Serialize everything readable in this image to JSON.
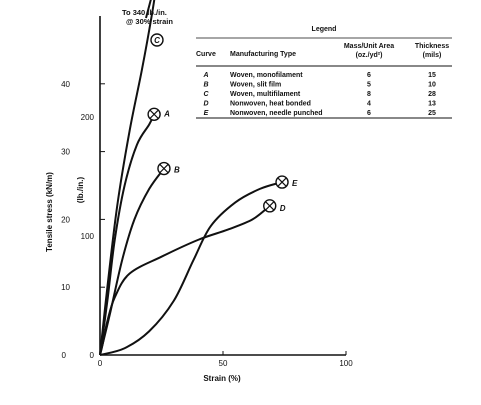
{
  "chart_data": {
    "type": "line",
    "title": "",
    "xlabel": "Strain (%)",
    "ylabel_primary": "Tensile stress (kN/m)",
    "ylabel_secondary": "(lb./in.)",
    "xlim": [
      0,
      100
    ],
    "ylim": [
      0,
      50
    ],
    "ylim_secondary": [
      0,
      285
    ],
    "x_ticks": [
      0,
      50,
      100
    ],
    "y_ticks": [
      10,
      20,
      30,
      40
    ],
    "y_ticks_secondary": [
      0,
      100,
      200
    ],
    "grid": false,
    "legend_position": "top-right",
    "note": {
      "line1": "To 340 lb./in.",
      "line2": "@ 30% strain"
    },
    "legend": {
      "title": "Legend",
      "headers": {
        "curve": "Curve",
        "type": "Manufacturing Type",
        "mass_line1": "Mass/Unit Area",
        "mass_line2": "(oz./yd²)",
        "thickness_line1": "Thickness",
        "thickness_line2": "(mils)"
      },
      "rows": [
        {
          "curve": "A",
          "type": "Woven, monofilament",
          "mass": "6",
          "thickness": "15"
        },
        {
          "curve": "B",
          "type": "Woven, slit film",
          "mass": "5",
          "thickness": "10"
        },
        {
          "curve": "C",
          "type": "Woven, multifilament",
          "mass": "8",
          "thickness": "28"
        },
        {
          "curve": "D",
          "type": "Nonwoven, heat bonded",
          "mass": "4",
          "thickness": "13"
        },
        {
          "curve": "E",
          "type": "Nonwoven, needle punched",
          "mass": "6",
          "thickness": "25"
        }
      ]
    },
    "series": [
      {
        "name": "A",
        "points": [
          [
            0,
            0
          ],
          [
            3,
            8
          ],
          [
            6,
            17
          ],
          [
            10,
            25
          ],
          [
            15,
            31
          ],
          [
            20,
            34
          ],
          [
            22,
            35.5
          ]
        ],
        "marker": "x",
        "label_offset": [
          10,
          2
        ]
      },
      {
        "name": "B",
        "points": [
          [
            0,
            0
          ],
          [
            4,
            6
          ],
          [
            9,
            14
          ],
          [
            14,
            20
          ],
          [
            20,
            24.5
          ],
          [
            26,
            27.5
          ]
        ],
        "marker": "x",
        "label_offset": [
          10,
          4
        ]
      },
      {
        "name": "C",
        "points": [
          [
            0,
            0
          ],
          [
            3,
            10
          ],
          [
            7,
            22
          ],
          [
            12,
            33
          ],
          [
            17,
            42
          ],
          [
            21,
            50
          ],
          [
            24,
            57
          ]
        ],
        "marker": "c",
        "label_offset": [
          0,
          0
        ]
      },
      {
        "name": "D",
        "points": [
          [
            0,
            0
          ],
          [
            1,
            1.5
          ],
          [
            3,
            5
          ],
          [
            6,
            8.5
          ],
          [
            12,
            12
          ],
          [
            25,
            14.5
          ],
          [
            40,
            17
          ],
          [
            52,
            18.5
          ],
          [
            62,
            20
          ],
          [
            69,
            22
          ]
        ],
        "marker": "x",
        "label_offset": [
          10,
          5
        ]
      },
      {
        "name": "E",
        "points": [
          [
            0,
            0
          ],
          [
            10,
            1
          ],
          [
            20,
            3.5
          ],
          [
            30,
            8
          ],
          [
            38,
            14
          ],
          [
            45,
            19
          ],
          [
            55,
            22.5
          ],
          [
            65,
            24.5
          ],
          [
            74,
            25.5
          ]
        ],
        "marker": "x",
        "label_offset": [
          10,
          4
        ]
      }
    ]
  }
}
